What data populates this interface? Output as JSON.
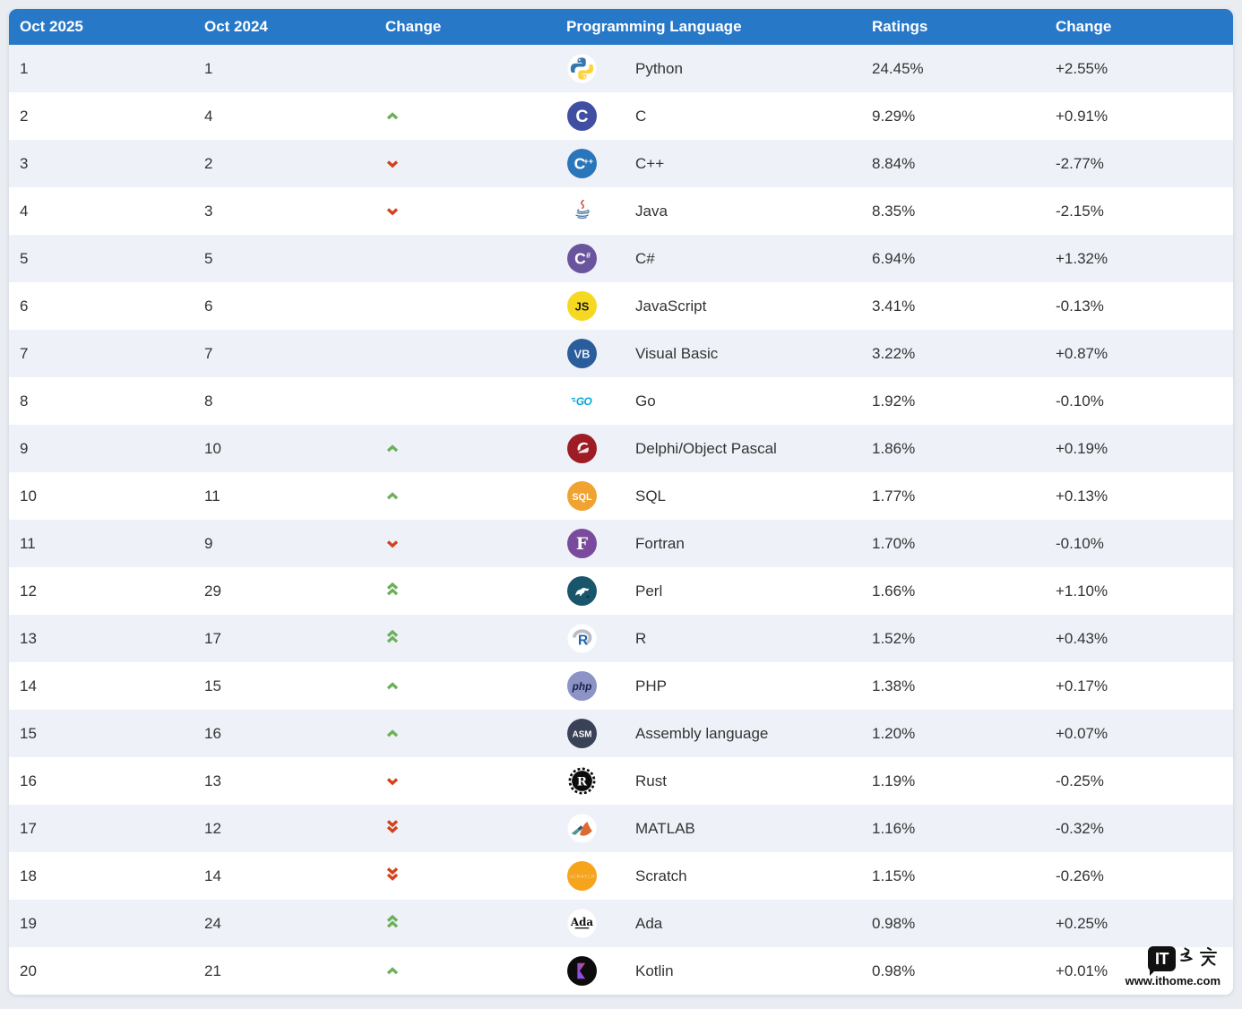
{
  "header": {
    "col_rank_now": "Oct 2025",
    "col_rank_prev": "Oct 2024",
    "col_change": "Change",
    "col_language": "Programming Language",
    "col_ratings": "Ratings",
    "col_change2": "Change"
  },
  "rows": [
    {
      "rank_2025": "1",
      "rank_2024": "1",
      "trend": "none",
      "icon": "python-icon",
      "language": "Python",
      "rating": "24.45%",
      "change": "+2.55%"
    },
    {
      "rank_2025": "2",
      "rank_2024": "4",
      "trend": "up",
      "icon": "c-icon",
      "language": "C",
      "rating": "9.29%",
      "change": "+0.91%"
    },
    {
      "rank_2025": "3",
      "rank_2024": "2",
      "trend": "down",
      "icon": "cpp-icon",
      "language": "C++",
      "rating": "8.84%",
      "change": "-2.77%"
    },
    {
      "rank_2025": "4",
      "rank_2024": "3",
      "trend": "down",
      "icon": "java-icon",
      "language": "Java",
      "rating": "8.35%",
      "change": "-2.15%"
    },
    {
      "rank_2025": "5",
      "rank_2024": "5",
      "trend": "none",
      "icon": "csharp-icon",
      "language": "C#",
      "rating": "6.94%",
      "change": "+1.32%"
    },
    {
      "rank_2025": "6",
      "rank_2024": "6",
      "trend": "none",
      "icon": "javascript-icon",
      "language": "JavaScript",
      "rating": "3.41%",
      "change": "-0.13%"
    },
    {
      "rank_2025": "7",
      "rank_2024": "7",
      "trend": "none",
      "icon": "visual-basic-icon",
      "language": "Visual Basic",
      "rating": "3.22%",
      "change": "+0.87%"
    },
    {
      "rank_2025": "8",
      "rank_2024": "8",
      "trend": "none",
      "icon": "go-icon",
      "language": "Go",
      "rating": "1.92%",
      "change": "-0.10%"
    },
    {
      "rank_2025": "9",
      "rank_2024": "10",
      "trend": "up",
      "icon": "delphi-icon",
      "language": "Delphi/Object Pascal",
      "rating": "1.86%",
      "change": "+0.19%"
    },
    {
      "rank_2025": "10",
      "rank_2024": "11",
      "trend": "up",
      "icon": "sql-icon",
      "language": "SQL",
      "rating": "1.77%",
      "change": "+0.13%"
    },
    {
      "rank_2025": "11",
      "rank_2024": "9",
      "trend": "down",
      "icon": "fortran-icon",
      "language": "Fortran",
      "rating": "1.70%",
      "change": "-0.10%"
    },
    {
      "rank_2025": "12",
      "rank_2024": "29",
      "trend": "up2",
      "icon": "perl-icon",
      "language": "Perl",
      "rating": "1.66%",
      "change": "+1.10%"
    },
    {
      "rank_2025": "13",
      "rank_2024": "17",
      "trend": "up2",
      "icon": "r-icon",
      "language": "R",
      "rating": "1.52%",
      "change": "+0.43%"
    },
    {
      "rank_2025": "14",
      "rank_2024": "15",
      "trend": "up",
      "icon": "php-icon",
      "language": "PHP",
      "rating": "1.38%",
      "change": "+0.17%"
    },
    {
      "rank_2025": "15",
      "rank_2024": "16",
      "trend": "up",
      "icon": "assembly-icon",
      "language": "Assembly language",
      "rating": "1.20%",
      "change": "+0.07%"
    },
    {
      "rank_2025": "16",
      "rank_2024": "13",
      "trend": "down",
      "icon": "rust-icon",
      "language": "Rust",
      "rating": "1.19%",
      "change": "-0.25%"
    },
    {
      "rank_2025": "17",
      "rank_2024": "12",
      "trend": "down2",
      "icon": "matlab-icon",
      "language": "MATLAB",
      "rating": "1.16%",
      "change": "-0.32%"
    },
    {
      "rank_2025": "18",
      "rank_2024": "14",
      "trend": "down2",
      "icon": "scratch-icon",
      "language": "Scratch",
      "rating": "1.15%",
      "change": "-0.26%"
    },
    {
      "rank_2025": "19",
      "rank_2024": "24",
      "trend": "up2",
      "icon": "ada-icon",
      "language": "Ada",
      "rating": "0.98%",
      "change": "+0.25%"
    },
    {
      "rank_2025": "20",
      "rank_2024": "21",
      "trend": "up",
      "icon": "kotlin-icon",
      "language": "Kotlin",
      "rating": "0.98%",
      "change": "+0.01%"
    }
  ],
  "watermark": {
    "it": "IT",
    "cn": "之家",
    "site": "www.ithome.com"
  },
  "colors": {
    "header_bg": "#2878c8",
    "row_alt": "#eef2f8",
    "trend_up": "#6cb15a",
    "trend_down": "#d4411b",
    "text": "#333333"
  },
  "chart_data": {
    "type": "table",
    "title": "TIOBE Programming Language Index - October 2025",
    "columns": [
      "Oct 2025",
      "Oct 2024",
      "Change",
      "Programming Language",
      "Ratings",
      "Change"
    ],
    "rows": [
      [
        1,
        1,
        "",
        "Python",
        "24.45%",
        "+2.55%"
      ],
      [
        2,
        4,
        "up",
        "C",
        "9.29%",
        "+0.91%"
      ],
      [
        3,
        2,
        "down",
        "C++",
        "8.84%",
        "-2.77%"
      ],
      [
        4,
        3,
        "down",
        "Java",
        "8.35%",
        "-2.15%"
      ],
      [
        5,
        5,
        "",
        "C#",
        "6.94%",
        "+1.32%"
      ],
      [
        6,
        6,
        "",
        "JavaScript",
        "3.41%",
        "-0.13%"
      ],
      [
        7,
        7,
        "",
        "Visual Basic",
        "3.22%",
        "+0.87%"
      ],
      [
        8,
        8,
        "",
        "Go",
        "1.92%",
        "-0.10%"
      ],
      [
        9,
        10,
        "up",
        "Delphi/Object Pascal",
        "1.86%",
        "+0.19%"
      ],
      [
        10,
        11,
        "up",
        "SQL",
        "1.77%",
        "+0.13%"
      ],
      [
        11,
        9,
        "down",
        "Fortran",
        "1.70%",
        "-0.10%"
      ],
      [
        12,
        29,
        "double-up",
        "Perl",
        "1.66%",
        "+1.10%"
      ],
      [
        13,
        17,
        "double-up",
        "R",
        "1.52%",
        "+0.43%"
      ],
      [
        14,
        15,
        "up",
        "PHP",
        "1.38%",
        "+0.17%"
      ],
      [
        15,
        16,
        "up",
        "Assembly language",
        "1.20%",
        "+0.07%"
      ],
      [
        16,
        13,
        "down",
        "Rust",
        "1.19%",
        "-0.25%"
      ],
      [
        17,
        12,
        "double-down",
        "MATLAB",
        "1.16%",
        "-0.32%"
      ],
      [
        18,
        14,
        "double-down",
        "Scratch",
        "1.15%",
        "-0.26%"
      ],
      [
        19,
        24,
        "double-up",
        "Ada",
        "0.98%",
        "+0.25%"
      ],
      [
        20,
        21,
        "up",
        "Kotlin",
        "0.98%",
        "+0.01%"
      ]
    ]
  }
}
